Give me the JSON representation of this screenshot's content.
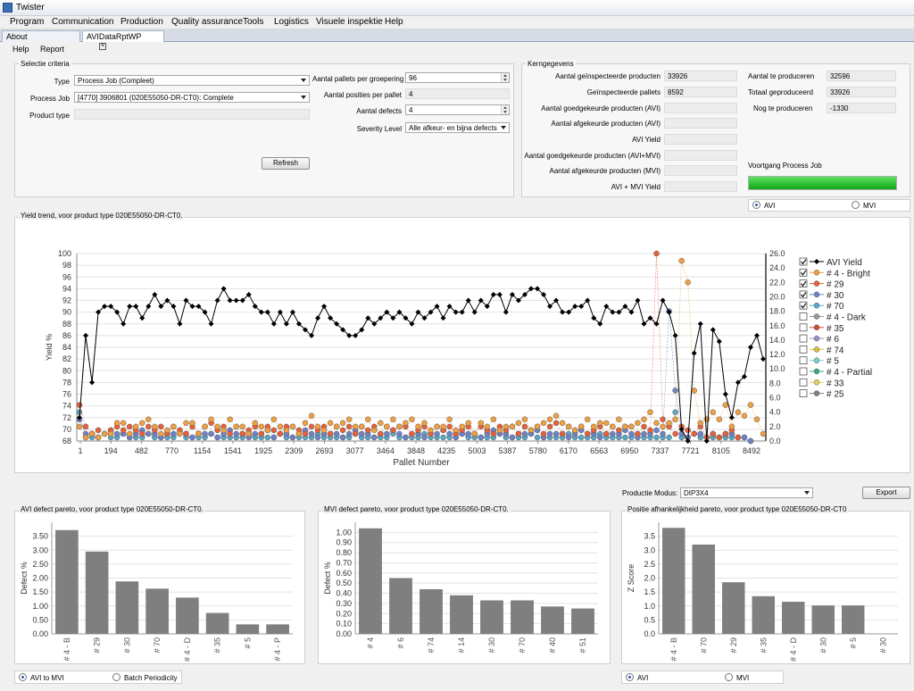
{
  "window": {
    "title": "Twister"
  },
  "menu": [
    "Program",
    "Communication",
    "Production",
    "Quality assurance",
    "Tools",
    "Logistics",
    "Visuele inspektie",
    "Help"
  ],
  "tabs": [
    {
      "label": "About"
    },
    {
      "label": "AVIDataRptWP"
    }
  ],
  "submenu": [
    "Help",
    "Report"
  ],
  "selectie": {
    "title": "Selectie criteria",
    "type_label": "Type",
    "type_value": "Process Job (Compleet)",
    "pj_label": "Process Job",
    "pj_value": "[4770] 3906801 (020E55050-DR-CT0): Complete",
    "pt_label": "Product type",
    "pt_value": "",
    "pallets_label": "Aantal pallets per groepering",
    "pallets_value": "96",
    "posities_label": "Aantal posities per pallet",
    "posities_value": "4",
    "defects_label": "Aantal defects",
    "defects_value": "4",
    "severity_label": "Severity Level",
    "severity_value": "Alle afkeur- en bijna defects",
    "refresh": "Refresh"
  },
  "kern": {
    "title": "Kerngegevens",
    "rows": [
      {
        "label": "Aantal geïnspecteerde producten",
        "value": "33926"
      },
      {
        "label": "Geïnspecteerde pallets",
        "value": "8592"
      },
      {
        "label": "Aantal goedgekeurde producten (AVI)",
        "value": ""
      },
      {
        "label": "Aantal afgekeurde producten (AVI)",
        "value": ""
      },
      {
        "label": "AVI Yield",
        "value": ""
      },
      {
        "label": "Aantal goedgekeurde producten (AVI+MVI)",
        "value": ""
      },
      {
        "label": "Aantal afgekeurde producten (MVI)",
        "value": ""
      },
      {
        "label": "AVI + MVI Yield",
        "value": ""
      }
    ],
    "right": [
      {
        "label": "Aantal te produceren",
        "value": "32596"
      },
      {
        "label": "Totaal geproduceerd",
        "value": "33926"
      },
      {
        "label": "Nog te produceren",
        "value": "-1330"
      }
    ],
    "voortgang_label": "Voortgang Process Job",
    "progress": 1.0
  },
  "topradio": {
    "avi": "AVI",
    "mvi": "MVI"
  },
  "trend": {
    "title": "Yield trend, voor product type 020E55050-DR-CT0.",
    "xlabel": "Pallet Number",
    "ylabel": "Yield %",
    "xticks": [
      "1",
      "194",
      "482",
      "770",
      "1154",
      "1541",
      "1925",
      "2309",
      "2693",
      "3077",
      "3464",
      "3848",
      "4235",
      "5003",
      "5387",
      "5780",
      "6170",
      "6563",
      "6950",
      "7337",
      "7721",
      "8105",
      "8492"
    ],
    "ylim": [
      68,
      100
    ],
    "y2lim": [
      0,
      26
    ],
    "legend": [
      {
        "name": "AVI Yield",
        "color": "#000000",
        "checked": true
      },
      {
        "name": "# 4 - Bright",
        "color": "#f0a040",
        "checked": true
      },
      {
        "name": "# 29",
        "color": "#e8603a",
        "checked": true
      },
      {
        "name": "# 30",
        "color": "#6f82c8",
        "checked": true
      },
      {
        "name": "# 70",
        "color": "#5aa7c7",
        "checked": true
      },
      {
        "name": "# 4 - Dark",
        "color": "#9a9a9a",
        "checked": false
      },
      {
        "name": "# 35",
        "color": "#d24a3a",
        "checked": false
      },
      {
        "name": "# 6",
        "color": "#a08cc8",
        "checked": false
      },
      {
        "name": "# 74",
        "color": "#d8c040",
        "checked": false
      },
      {
        "name": "# 5",
        "color": "#7ad0d0",
        "checked": false
      },
      {
        "name": "# 4 - Partial",
        "color": "#3aa88a",
        "checked": false
      },
      {
        "name": "# 33",
        "color": "#e8d05a",
        "checked": false
      },
      {
        "name": "# 25",
        "color": "#808080",
        "checked": false
      }
    ],
    "yield": [
      72,
      86,
      78,
      90,
      91,
      91,
      90,
      88,
      91,
      91,
      89,
      91,
      93,
      91,
      92,
      91,
      88,
      92,
      91,
      91,
      90,
      88,
      92,
      94,
      92,
      92,
      92,
      93,
      91,
      90,
      90,
      88,
      90,
      88,
      90,
      88,
      87,
      86,
      89,
      91,
      89,
      88,
      87,
      86,
      86,
      87,
      89,
      88,
      89,
      90,
      89,
      90,
      89,
      88,
      90,
      89,
      90,
      91,
      89,
      91,
      90,
      90,
      92,
      90,
      92,
      91,
      93,
      93,
      90,
      93,
      92,
      93,
      94,
      94,
      93,
      91,
      92,
      90,
      90,
      91,
      91,
      92,
      89,
      88,
      91,
      90,
      90,
      91,
      90,
      92,
      88,
      89,
      88,
      92,
      90,
      86,
      70,
      68,
      83,
      88,
      68,
      87,
      85,
      76,
      72,
      78,
      79,
      84,
      86,
      82
    ],
    "c4": [
      2,
      0.5,
      1,
      0.5,
      1,
      1,
      2.5,
      2.5,
      1,
      2,
      2.5,
      3,
      2,
      1,
      1.5,
      2,
      1,
      2.5,
      2.5,
      1,
      2,
      3,
      2,
      1.5,
      3,
      2,
      2,
      1,
      2.5,
      2,
      1.5,
      3,
      2,
      1.5,
      2,
      1,
      2.5,
      3.5,
      2,
      1.5,
      2.5,
      2,
      2.5,
      3,
      2,
      2,
      3,
      1.5,
      2.5,
      2,
      3,
      2,
      2.5,
      3,
      2,
      2.5,
      1.5,
      2,
      2,
      3,
      1.5,
      2,
      2.5,
      1,
      2.5,
      2,
      3,
      1.5,
      2,
      2,
      2.5,
      3,
      1.5,
      2,
      2.5,
      3,
      3.5,
      2.5,
      2,
      1.5,
      2,
      3,
      2,
      2.5,
      2.5,
      2,
      3,
      2,
      2,
      2.5,
      3,
      4,
      2.5,
      2,
      2.5,
      3,
      25,
      22,
      7,
      2.5,
      3,
      4,
      3,
      5,
      2,
      4,
      3.5,
      5,
      3,
      1
    ],
    "c29": [
      5,
      2,
      1,
      1.5,
      1,
      1.5,
      2,
      1.5,
      2,
      1.5,
      1,
      2,
      1.5,
      2,
      1,
      2,
      1.5,
      1,
      2,
      1,
      2,
      2.5,
      1.5,
      2,
      1,
      2,
      1,
      1.5,
      2,
      1,
      2,
      1.5,
      1,
      2,
      2,
      1.5,
      1,
      2,
      1.5,
      2,
      1,
      2,
      1.5,
      2,
      1,
      2,
      1.5,
      2,
      1,
      2,
      1.5,
      2,
      2,
      1,
      1.5,
      2,
      1,
      2,
      1.5,
      2,
      1,
      1.5,
      2,
      1,
      2,
      1.5,
      1,
      2,
      1.5,
      2,
      1,
      2,
      1.5,
      2,
      1,
      2,
      2.5,
      1,
      2,
      1.5,
      2,
      1,
      1.5,
      2,
      1,
      2,
      1.5,
      2,
      2,
      1,
      2,
      1.5,
      26,
      3,
      2,
      1,
      2,
      1.5,
      1,
      2,
      0.5,
      1,
      0.5,
      1,
      1.5,
      0.5
    ],
    "c30": [
      3,
      1,
      1,
      0.5,
      1,
      1.5,
      1,
      1,
      0.5,
      1,
      1.5,
      1,
      1,
      0.5,
      1,
      1,
      1.5,
      1,
      0.5,
      1,
      1,
      1,
      0.5,
      1,
      1.5,
      1,
      1,
      0.5,
      1,
      1,
      1.5,
      0.5,
      1,
      1,
      0.5,
      1,
      1.5,
      1,
      0.5,
      1,
      1,
      1,
      0.5,
      1,
      1.5,
      1,
      1,
      0.5,
      1,
      1,
      1.5,
      1,
      0.5,
      1,
      1,
      0.5,
      1,
      1,
      1.5,
      1,
      0.5,
      1,
      1,
      1,
      0.5,
      1,
      1.5,
      1,
      1,
      0.5,
      1,
      1,
      1,
      1.5,
      0.5,
      1,
      1,
      1,
      0.5,
      1,
      1.5,
      1,
      1,
      0.5,
      1,
      1,
      1,
      1.5,
      1,
      0.5,
      1,
      1,
      1.5,
      1,
      18,
      7,
      1,
      0.5,
      1,
      1,
      0.5,
      1,
      0.5,
      1,
      1,
      0.5,
      0.5,
      0
    ],
    "c70": [
      4,
      0.5,
      0.5,
      0.5,
      1,
      0.5,
      0.5,
      1,
      0.5,
      0.5,
      0.5,
      1,
      0.5,
      0.5,
      0.5,
      0.5,
      1,
      0.5,
      0.5,
      0.5,
      0.5,
      1,
      0.5,
      0.5,
      0.5,
      0.5,
      0.5,
      1,
      0.5,
      0.5,
      0.5,
      0.5,
      1,
      0.5,
      0.5,
      0.5,
      0.5,
      0.5,
      1,
      0.5,
      0.5,
      0.5,
      0.5,
      0.5,
      1,
      0.5,
      0.5,
      0.5,
      0.5,
      0.5,
      1,
      0.5,
      0.5,
      0.5,
      0.5,
      1,
      0.5,
      0.5,
      0.5,
      0.5,
      0.5,
      1,
      0.5,
      0.5,
      0.5,
      0.5,
      0.5,
      1,
      0.5,
      0.5,
      0.5,
      0.5,
      1,
      0.5,
      0.5,
      0.5,
      0.5,
      0.5,
      1,
      0.5,
      0.5,
      0.5,
      0.5,
      1,
      0.5,
      0.5,
      0.5,
      0.5,
      0.5,
      1,
      0.5,
      0.5,
      0.5,
      0.5,
      0.5,
      4,
      0.5,
      0.5,
      1,
      0.5,
      0.5,
      0.5,
      0.5,
      0.5,
      0.5,
      0.5,
      0.5,
      0
    ]
  },
  "productie": {
    "label": "Productie Modus:",
    "value": "DIP3X4",
    "export": "Export"
  },
  "pareto": [
    {
      "title": "AVI defect pareto, voor product type 020E55050-DR-CT0.",
      "ylabel": "Defect %",
      "ymax": 4,
      "yticks": [
        "0.00",
        "0.50",
        "1.00",
        "1.50",
        "2.00",
        "2.50",
        "3.00",
        "3.50"
      ],
      "cats": [
        "# 4 - B",
        "# 29",
        "# 30",
        "# 70",
        "# 4 - D",
        "# 35",
        "# 5",
        "# 4 - P"
      ],
      "vals": [
        3.72,
        2.95,
        1.88,
        1.62,
        1.3,
        0.75,
        0.34,
        0.34
      ]
    },
    {
      "title": "MVI defect pareto, voor product type 020E55050-DR-CT0.",
      "ylabel": "Defect %",
      "ymax": 1.1,
      "yticks": [
        "0.00",
        "0.10",
        "0.20",
        "0.30",
        "0.40",
        "0.50",
        "0.60",
        "0.70",
        "0.80",
        "0.90",
        "1.00"
      ],
      "cats": [
        "# 4",
        "# 6",
        "# 74",
        "# 14",
        "# 30",
        "# 70",
        "# 40",
        "# 51"
      ],
      "vals": [
        1.04,
        0.55,
        0.44,
        0.38,
        0.33,
        0.33,
        0.27,
        0.25
      ]
    },
    {
      "title": "Positie afhankelijkheid pareto, voor product type 020E55050-DR-CT0",
      "ylabel": "Z Score",
      "ymax": 4,
      "yticks": [
        "0.0",
        "0.5",
        "1.0",
        "1.5",
        "2.0",
        "2.5",
        "3.0",
        "3.5"
      ],
      "cats": [
        "# 4 - B",
        "# 70",
        "# 29",
        "# 35",
        "# 4 - D",
        "# 30",
        "# 5",
        "# 30"
      ],
      "vals": [
        3.8,
        3.2,
        1.85,
        1.35,
        1.15,
        1.02,
        1.02,
        0
      ]
    }
  ],
  "bottomradio": {
    "avi_to_mvi": "AVI to MVI",
    "batch": "Batch Periodicity",
    "avi": "AVI",
    "mvi": "MVI"
  }
}
